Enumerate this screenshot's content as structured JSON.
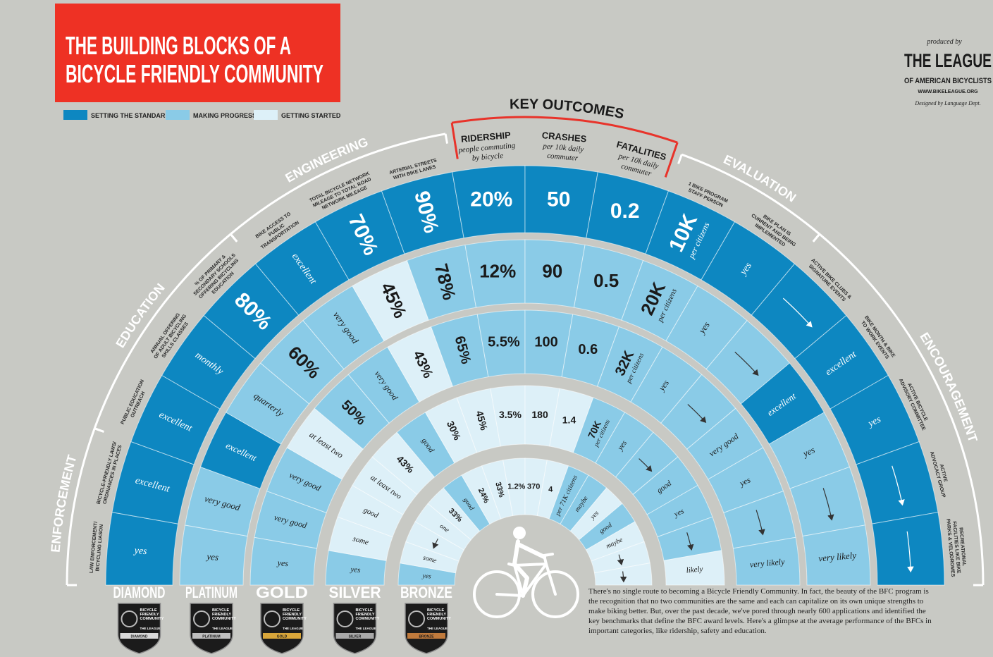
{
  "header": {
    "title_lines": [
      "THE BUILDING BLOCKS OF A",
      "BICYCLE FRIENDLY COMMUNITY"
    ],
    "title_color": "#ee3124",
    "legend": [
      {
        "label": "SETTING THE STANDARD",
        "color": "#0d87c1"
      },
      {
        "label": "MAKING PROGRESS",
        "color": "#8acbe7"
      },
      {
        "label": "GETTING STARTED",
        "color": "#ddf0f8"
      }
    ]
  },
  "credits": {
    "produced_by": "produced by",
    "org_name": "THE LEAGUE",
    "org_sub": "OF AMERICAN BICYCLISTS",
    "url": "WWW.BIKELEAGUE.ORG",
    "designer": "Designed by Language Dept."
  },
  "levels": [
    {
      "name": "DIAMOND",
      "badge_color": "#d9d9d9"
    },
    {
      "name": "PLATINUM",
      "badge_color": "#bfbfbf"
    },
    {
      "name": "GOLD",
      "badge_color": "#d9a63a"
    },
    {
      "name": "SILVER",
      "badge_color": "#a9a9a9"
    },
    {
      "name": "BRONZE",
      "badge_color": "#c07a3c"
    }
  ],
  "badge": {
    "lines": [
      "BICYCLE",
      "FRIENDLY",
      "COMMUNITY"
    ],
    "league": "THE LEAGUE"
  },
  "categories": [
    {
      "name": "ENFORCEMENT",
      "color": "#ffffff",
      "columns": [
        {
          "label_lines": [
            "LAW ENFORCEMENT/",
            "BICYCLING LIASON"
          ],
          "cells": [
            {
              "text": "yes",
              "tier": 0
            },
            {
              "text": "yes",
              "tier": 1
            },
            {
              "text": "yes",
              "tier": 1
            },
            {
              "text": "yes",
              "tier": 1
            },
            {
              "text": "yes",
              "tier": 1
            }
          ]
        },
        {
          "label_lines": [
            "BICYCLE-FRIENDLY LAWS/",
            "ORDINANCES IN PLACES"
          ],
          "cells": [
            {
              "text": "excellent",
              "tier": 0
            },
            {
              "text": "very good",
              "tier": 1
            },
            {
              "text": "very good",
              "tier": 1
            },
            {
              "text": "some",
              "tier": 2
            },
            {
              "text": "some",
              "tier": 2
            }
          ]
        }
      ]
    },
    {
      "name": "EDUCATION",
      "color": "#ffffff",
      "columns": [
        {
          "label_lines": [
            "PUBLIC EDUCATION",
            "OUTREACH"
          ],
          "cells": [
            {
              "text": "excellent",
              "tier": 0
            },
            {
              "text": "excellent",
              "tier": 0
            },
            {
              "text": "very good",
              "tier": 1
            },
            {
              "text": "good",
              "tier": 2
            },
            {
              "tier": 2
            }
          ]
        },
        {
          "label_lines": [
            "ANNUAL OFFERING",
            "OF ADULT BICYCLING",
            "SKILLS CLASSES"
          ],
          "cells": [
            {
              "text": "monthly",
              "tier": 0
            },
            {
              "text": "quarterly",
              "tier": 1
            },
            {
              "text": "at least two",
              "tier": 2
            },
            {
              "text": "at least two",
              "tier": 2
            },
            {
              "text": "one",
              "tier": 2
            }
          ]
        },
        {
          "label_lines": [
            "% OF PRIMARY &",
            "SECONDARY SCHOOLS",
            "OFFERING BICYCLING",
            "EDUCATION"
          ],
          "cells": [
            {
              "text": "80%",
              "tier": 0
            },
            {
              "text": "60%",
              "tier": 1
            },
            {
              "text": "50%",
              "tier": 1
            },
            {
              "text": "43%",
              "tier": 2
            },
            {
              "text": "33%",
              "tier": 2
            }
          ]
        }
      ]
    },
    {
      "name": "ENGINEERING",
      "color": "#ffffff",
      "columns": [
        {
          "label_lines": [
            "BIKE ACCESS TO",
            "PUBLIC",
            "TRANSPORTATION"
          ],
          "cells": [
            {
              "text": "excellent",
              "tier": 0
            },
            {
              "text": "very good",
              "tier": 1
            },
            {
              "text": "very good",
              "tier": 1
            },
            {
              "text": "good",
              "tier": 1
            },
            {
              "text": "good",
              "tier": 1
            }
          ]
        },
        {
          "label_lines": [
            "TOTAL BICYCLE NETWORK",
            "MILEAGE TO TOTAL ROAD",
            "NETWORK MILEAGE"
          ],
          "cells": [
            {
              "text": "70%",
              "tier": 0
            },
            {
              "text": "45%",
              "tier": 2
            },
            {
              "text": "43%",
              "tier": 2
            },
            {
              "text": "30%",
              "tier": 2
            },
            {
              "text": "24%",
              "tier": 2
            }
          ]
        },
        {
          "label_lines": [
            "ARTERIAL STREETS",
            "WITH BIKE LANES"
          ],
          "cells": [
            {
              "text": "90%",
              "tier": 0
            },
            {
              "text": "78%",
              "tier": 1
            },
            {
              "text": "65%",
              "tier": 1
            },
            {
              "text": "45%",
              "tier": 2
            },
            {
              "text": "33%",
              "tier": 2
            }
          ]
        }
      ]
    },
    {
      "name": "KEY OUTCOMES",
      "color": "#1a1a1a",
      "bracket_color": "#e8332a",
      "columns": [
        {
          "label_lines": [
            "RIDERSHIP"
          ],
          "sub_lines": [
            "people commuting",
            "by bicycle"
          ],
          "cells": [
            {
              "text": "20%",
              "tier": 0
            },
            {
              "text": "12%",
              "tier": 1
            },
            {
              "text": "5.5%",
              "tier": 1
            },
            {
              "text": "3.5%",
              "tier": 2
            },
            {
              "text": "1.2%",
              "tier": 2
            }
          ]
        },
        {
          "label_lines": [
            "CRASHES"
          ],
          "sub_lines": [
            "per 10k daily",
            "commuter"
          ],
          "cells": [
            {
              "text": "50",
              "tier": 0
            },
            {
              "text": "90",
              "tier": 1
            },
            {
              "text": "100",
              "tier": 1
            },
            {
              "text": "180",
              "tier": 2
            },
            {
              "text": "370",
              "tier": 2
            }
          ]
        },
        {
          "label_lines": [
            "FATALITIES"
          ],
          "sub_lines": [
            "per 10k daily",
            "commuter"
          ],
          "cells": [
            {
              "text": "0.2",
              "tier": 0
            },
            {
              "text": "0.5",
              "tier": 1
            },
            {
              "text": "0.6",
              "tier": 1
            },
            {
              "text": "1.4",
              "tier": 2
            },
            {
              "text": "4",
              "tier": 2
            }
          ]
        }
      ]
    },
    {
      "name": "EVALUATION",
      "color": "#ffffff",
      "columns": [
        {
          "label_lines": [
            "1 BIKE PROGRAM",
            "STAFF PERSON"
          ],
          "cells": [
            {
              "text": "10K",
              "sub": "per citizens",
              "tier": 0
            },
            {
              "text": "20K",
              "sub": "per citizens",
              "tier": 1
            },
            {
              "text": "32K",
              "sub": "per citizens",
              "tier": 1
            },
            {
              "text": "70K",
              "sub": "per citizens",
              "tier": 1
            },
            {
              "text": "per 71K citizens",
              "tier": 1
            }
          ]
        },
        {
          "label_lines": [
            "BIKE PLAN IS",
            "CURRENT AND BEING",
            "IMPLEMENTED"
          ],
          "cells": [
            {
              "text": "yes",
              "tier": 0
            },
            {
              "text": "yes",
              "tier": 1
            },
            {
              "text": "yes",
              "tier": 1
            },
            {
              "text": "yes",
              "tier": 1
            },
            {
              "text": "maybe",
              "tier": 1
            }
          ]
        }
      ]
    },
    {
      "name": "ENCOURAGEMENT",
      "color": "#ffffff",
      "columns": [
        {
          "label_lines": [
            "ACTIVE BIKE CLUBS &",
            "SIGNATURE EVENTS"
          ],
          "cells": [
            {
              "tier": 0
            },
            {
              "tier": 1
            },
            {
              "tier": 1
            },
            {
              "tier": 1
            },
            {
              "text": "yes",
              "tier": 2
            }
          ]
        },
        {
          "label_lines": [
            "BIKE MONTH & BIKE",
            "TO WORK EVENTS"
          ],
          "cells": [
            {
              "text": "excellent",
              "tier": 0
            },
            {
              "text": "excellent",
              "tier": 0
            },
            {
              "text": "very good",
              "tier": 1
            },
            {
              "text": "good",
              "tier": 1
            },
            {
              "text": "good",
              "tier": 1
            }
          ]
        },
        {
          "label_lines": [
            "ACTIVE BICYCLE",
            "ADVISORY COMMITTEE"
          ],
          "cells": [
            {
              "text": "yes",
              "tier": 0
            },
            {
              "text": "yes",
              "tier": 1
            },
            {
              "text": "yes",
              "tier": 1
            },
            {
              "text": "yes",
              "tier": 1
            },
            {
              "text": "maybe",
              "tier": 2
            }
          ]
        },
        {
          "label_lines": [
            "ACTIVE",
            "ADVOCACY GROUP"
          ],
          "cells": [
            {
              "tier": 0
            },
            {
              "tier": 1
            },
            {
              "tier": 1
            },
            {
              "tier": 1
            },
            {
              "tier": 2
            }
          ]
        },
        {
          "label_lines": [
            "RECREATIONAL",
            "FACILITIES LIKE BIKE",
            "PARKS & VELODROMES"
          ],
          "cells": [
            {
              "tier": 0
            },
            {
              "text": "very likely",
              "tier": 1
            },
            {
              "text": "very likely",
              "tier": 1
            },
            {
              "text": "likely",
              "tier": 2
            },
            {
              "tier": 2
            }
          ]
        }
      ]
    }
  ],
  "paragraph": "There's no single route to becoming a Bicycle Friendly Community. In fact, the beauty of the BFC program is the recognition that no two communities are the same and each can capitalize on its own unique strengths to make biking better. But, over the past decade, we've pored through nearly 600 applications and identified the key benchmarks that define the BFC award levels. Here's a glimpse at the average performance of the BFCs in important categories, like ridership, safety and education."
}
